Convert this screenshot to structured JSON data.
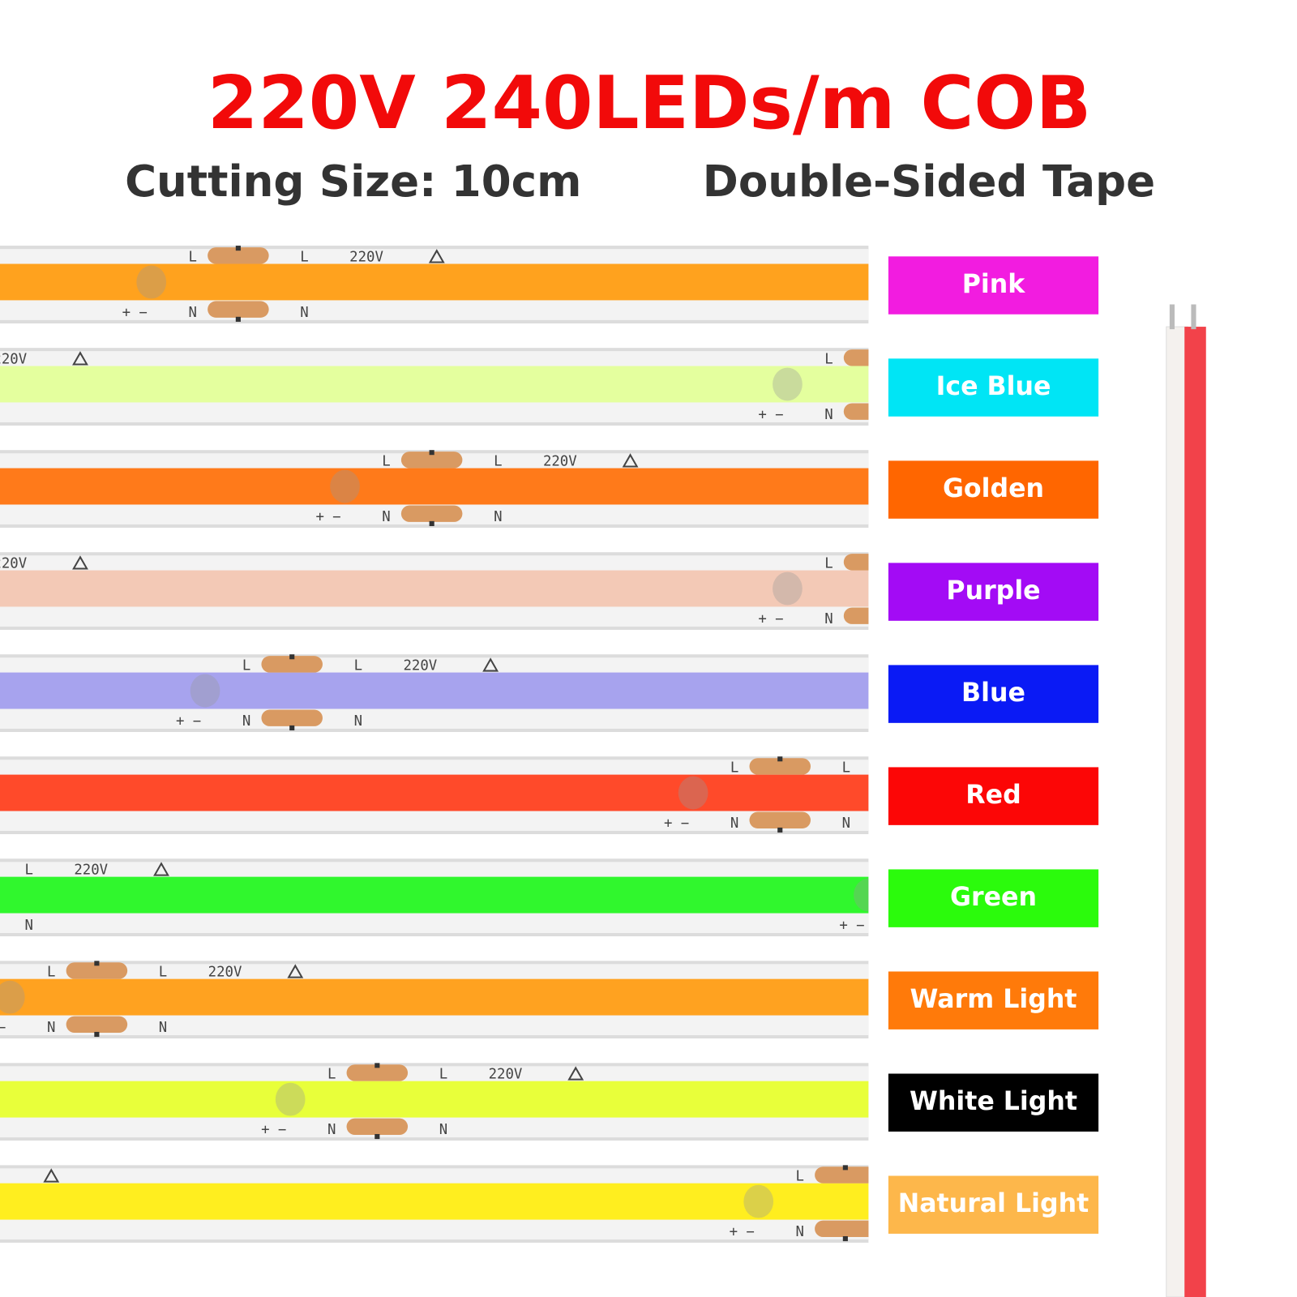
{
  "header": {
    "title": "220V 240LEDs/m COB",
    "cutting_size": "Cutting Size: 10cm",
    "tape": "Double-Sided Tape"
  },
  "strip_markings": {
    "live": "L",
    "neutral": "N",
    "voltage": "220V",
    "polarity": "+ −"
  },
  "colors": [
    {
      "name": "Pink",
      "color": "#f21ce0",
      "strip_color": "#ffa21e"
    },
    {
      "name": "Ice Blue",
      "color": "#00e5f5",
      "strip_color": "#e4ff9e"
    },
    {
      "name": "Golden",
      "color": "#ff6600",
      "strip_color": "#ff7a1a"
    },
    {
      "name": "Purple",
      "color": "#a30bf5",
      "strip_color": "#f3c9b6"
    },
    {
      "name": "Blue",
      "color": "#0a1af5",
      "strip_color": "#a7a3ee"
    },
    {
      "name": "Red",
      "color": "#fc0606",
      "strip_color": "#ff4a2a"
    },
    {
      "name": "Green",
      "color": "#2bfb0c",
      "strip_color": "#30f72d"
    },
    {
      "name": "Warm Light",
      "color": "#ff7a0a",
      "strip_color": "#ffa220"
    },
    {
      "name": "White Light",
      "color": "#000000",
      "strip_color": "#e8ff3a"
    },
    {
      "name": "Natural Light",
      "color": "#fdb74b",
      "strip_color": "#ffee1f"
    }
  ]
}
